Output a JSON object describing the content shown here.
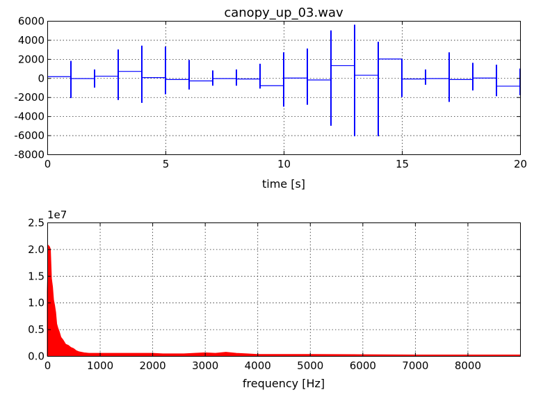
{
  "chart_data": [
    {
      "type": "line",
      "title": "canopy_up_03.wav",
      "xlabel": "time [s]",
      "ylabel": "",
      "xlim": [
        0,
        20
      ],
      "ylim": [
        -8000,
        6000
      ],
      "xticks": [
        0,
        5,
        10,
        15,
        20
      ],
      "yticks": [
        -8000,
        -6000,
        -4000,
        -2000,
        0,
        2000,
        4000,
        6000
      ],
      "grid": true,
      "color": "#0000ff",
      "segments": [
        {
          "t": 0,
          "level": 150,
          "spike_min": 0,
          "spike_max": 0
        },
        {
          "t": 1,
          "level": -50,
          "spike_min": -2100,
          "spike_max": 1800
        },
        {
          "t": 2,
          "level": 200,
          "spike_min": -1000,
          "spike_max": 900
        },
        {
          "t": 3,
          "level": 700,
          "spike_min": -2300,
          "spike_max": 3000
        },
        {
          "t": 4,
          "level": 50,
          "spike_min": -2600,
          "spike_max": 3400
        },
        {
          "t": 5,
          "level": -150,
          "spike_min": -1700,
          "spike_max": 3300
        },
        {
          "t": 6,
          "level": -300,
          "spike_min": -1200,
          "spike_max": 1900
        },
        {
          "t": 7,
          "level": -50,
          "spike_min": -800,
          "spike_max": 800
        },
        {
          "t": 8,
          "level": -100,
          "spike_min": -800,
          "spike_max": 900
        },
        {
          "t": 9,
          "level": -800,
          "spike_min": -1100,
          "spike_max": 1500
        },
        {
          "t": 10,
          "level": 0,
          "spike_min": -3000,
          "spike_max": 2700
        },
        {
          "t": 11,
          "level": -200,
          "spike_min": -2800,
          "spike_max": 3100
        },
        {
          "t": 12,
          "level": 1300,
          "spike_min": -5000,
          "spike_max": 5000
        },
        {
          "t": 13,
          "level": 300,
          "spike_min": -6100,
          "spike_max": 5600
        },
        {
          "t": 14,
          "level": 2000,
          "spike_min": -6100,
          "spike_max": 3800
        },
        {
          "t": 15,
          "level": -100,
          "spike_min": -2000,
          "spike_max": 2000
        },
        {
          "t": 16,
          "level": -50,
          "spike_min": -700,
          "spike_max": 900
        },
        {
          "t": 17,
          "level": -150,
          "spike_min": -2500,
          "spike_max": 2700
        },
        {
          "t": 18,
          "level": 0,
          "spike_min": -1300,
          "spike_max": 1600
        },
        {
          "t": 19,
          "level": -850,
          "spike_min": -1900,
          "spike_max": 1400
        },
        {
          "t": 20,
          "level": -850,
          "spike_min": -1800,
          "spike_max": 1000
        }
      ]
    },
    {
      "type": "area",
      "title": "",
      "xlabel": "frequency [Hz]",
      "ylabel": "",
      "offset_text": "1e7",
      "xlim": [
        0,
        9000
      ],
      "ylim": [
        0,
        2.5
      ],
      "xticks": [
        0,
        1000,
        2000,
        3000,
        4000,
        5000,
        6000,
        7000,
        8000
      ],
      "yticks": [
        0.0,
        0.5,
        1.0,
        1.5,
        2.0,
        2.5
      ],
      "ytick_labels": [
        "0.0",
        "0.5",
        "1.0",
        "1.5",
        "2.0",
        "2.5"
      ],
      "grid": true,
      "color": "#ff0000",
      "envelope": {
        "freq": [
          0,
          20,
          40,
          60,
          80,
          100,
          120,
          140,
          160,
          180,
          200,
          230,
          260,
          300,
          350,
          400,
          450,
          500,
          550,
          600,
          700,
          800,
          1000,
          1500,
          2000,
          2200,
          2400,
          2600,
          2800,
          3000,
          3200,
          3400,
          3500,
          3600,
          3800,
          4000,
          5000,
          6000,
          7000,
          8000,
          9000
        ],
        "amp": [
          1.2,
          2.07,
          2.05,
          2.0,
          1.45,
          1.3,
          1.05,
          0.95,
          0.82,
          0.6,
          0.53,
          0.45,
          0.35,
          0.3,
          0.22,
          0.2,
          0.16,
          0.14,
          0.1,
          0.08,
          0.06,
          0.05,
          0.05,
          0.05,
          0.05,
          0.04,
          0.04,
          0.04,
          0.05,
          0.06,
          0.05,
          0.07,
          0.06,
          0.05,
          0.04,
          0.03,
          0.03,
          0.025,
          0.02,
          0.02,
          0.02
        ]
      }
    }
  ]
}
